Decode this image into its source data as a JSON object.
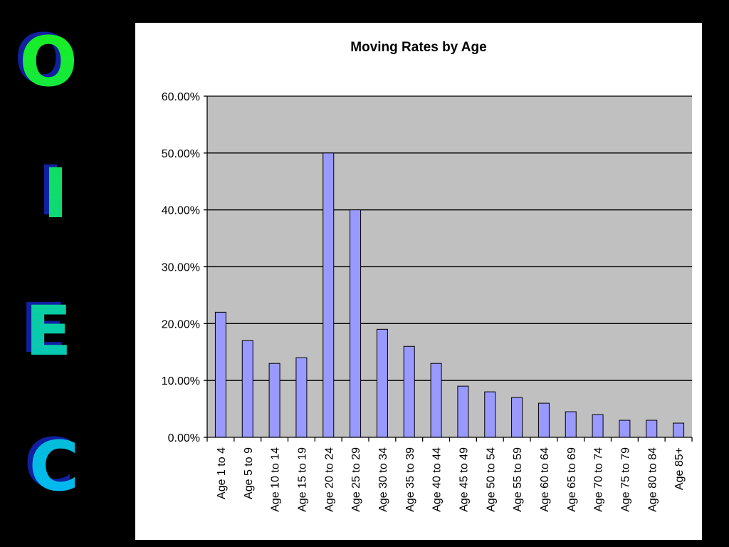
{
  "side_letters": {
    "letters": [
      "O",
      "I",
      "E",
      "C"
    ],
    "gradient_top": "#18f020",
    "gradient_bottom": "#00b8f0",
    "shadow_color": "#1020a0"
  },
  "colors": {
    "page_background": "#000000",
    "panel_background": "#ffffff",
    "plot_background": "#c0c0c0",
    "bar_fill": "#9999ff",
    "bar_stroke": "#000000",
    "gridline": "#000000"
  },
  "chart_data": {
    "type": "bar",
    "title": "Moving Rates by Age",
    "xlabel": "",
    "ylabel": "",
    "categories": [
      "Age 1 to 4",
      "Age 5 to 9",
      "Age 10 to 14",
      "Age 15 to 19",
      "Age 20 to 24",
      "Age 25 to 29",
      "Age 30 to 34",
      "Age 35 to 39",
      "Age 40 to 44",
      "Age 45 to 49",
      "Age 50 to 54",
      "Age 55 to 59",
      "Age 60 to 64",
      "Age 65 to 69",
      "Age 70 to 74",
      "Age 75 to 79",
      "Age 80 to 84",
      "Age 85+"
    ],
    "values": [
      22,
      17,
      13,
      14,
      50,
      40,
      19,
      16,
      13,
      9,
      8,
      7,
      6,
      4.5,
      4,
      3,
      3,
      2.5
    ],
    "y_ticks": [
      0,
      10,
      20,
      30,
      40,
      50,
      60
    ],
    "y_tick_labels": [
      "0.00%",
      "10.00%",
      "20.00%",
      "30.00%",
      "40.00%",
      "50.00%",
      "60.00%"
    ],
    "ylim": [
      0,
      60
    ],
    "grid": true,
    "legend": "none"
  }
}
